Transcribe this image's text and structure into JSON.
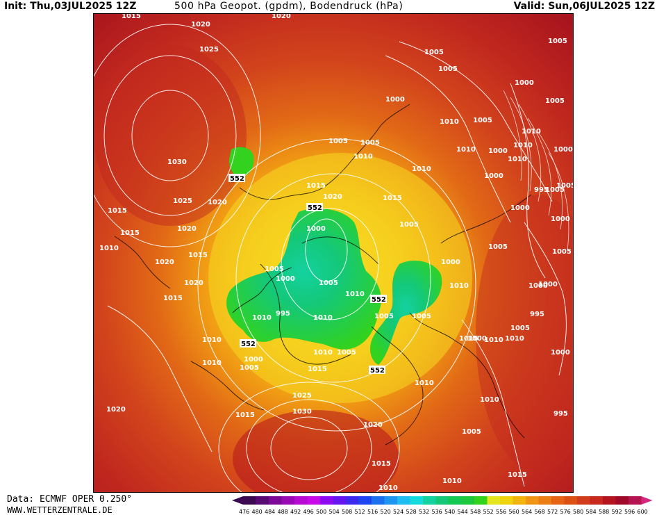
{
  "header": {
    "init": "Init: Thu,03JUL2025 12Z",
    "title": "500 hPa Geopot. (gpdm), Bodendruck (hPa)",
    "valid": "Valid: Sun,06JUL2025 12Z"
  },
  "footer": {
    "source": "Data: ECMWF OPER 0.250°",
    "site": "WWW.WETTERZENTRALE.DE"
  },
  "colorbar": {
    "ticks": [
      "476",
      "480",
      "484",
      "488",
      "492",
      "496",
      "500",
      "504",
      "508",
      "512",
      "516",
      "520",
      "524",
      "528",
      "532",
      "536",
      "540",
      "544",
      "548",
      "552",
      "556",
      "560",
      "564",
      "568",
      "572",
      "576",
      "580",
      "584",
      "588",
      "592",
      "596",
      "600"
    ],
    "colors": [
      "#3d0a52",
      "#5a0a73",
      "#7b0a96",
      "#9a0ab4",
      "#b40ad2",
      "#c80ae6",
      "#8c0af0",
      "#6414f0",
      "#3c28f0",
      "#1e46f0",
      "#1e6ef0",
      "#1e96f0",
      "#1ebef0",
      "#14dcdc",
      "#14d2a0",
      "#14c878",
      "#14c850",
      "#1ec83c",
      "#32d21e",
      "#e6e61e",
      "#f0d20a",
      "#f0b40a",
      "#f09614",
      "#eb7d14",
      "#e66414",
      "#dc5014",
      "#d23c1e",
      "#c8281e",
      "#b4141e",
      "#a00a28",
      "#b41450",
      "#d2287d"
    ]
  },
  "map_labels": {
    "isobars": [
      "1015",
      "1020",
      "1020",
      "1025",
      "1030",
      "1025",
      "1020",
      "1015",
      "1015",
      "1010",
      "1020",
      "1020",
      "1015",
      "1010",
      "1010",
      "1005",
      "1000",
      "995",
      "1000",
      "1005",
      "1010",
      "1010",
      "1005",
      "1000",
      "1015",
      "1020",
      "1025",
      "1030",
      "1020",
      "1015",
      "1010",
      "1010",
      "1015",
      "1005",
      "1000",
      "1005",
      "1010",
      "1005",
      "1010",
      "1015",
      "1010",
      "1010",
      "1015",
      "1010",
      "1005",
      "1000",
      "995",
      "1000",
      "1005",
      "1010",
      "1010",
      "1005",
      "1005",
      "1000",
      "1005",
      "1005",
      "1000",
      "1005",
      "1000",
      "1005",
      "1000",
      "1010",
      "1015",
      "1020",
      "1020",
      "1015",
      "1010",
      "1010",
      "1010",
      "1005",
      "1005",
      "1010",
      "1000",
      "1005",
      "1000",
      "995",
      "1005",
      "1000",
      "1010",
      "1005",
      "1000",
      "1005",
      "1015",
      "1010",
      "1000",
      "995",
      "1005"
    ],
    "geopotential_552": [
      "552",
      "552",
      "552",
      "552",
      "552"
    ]
  }
}
